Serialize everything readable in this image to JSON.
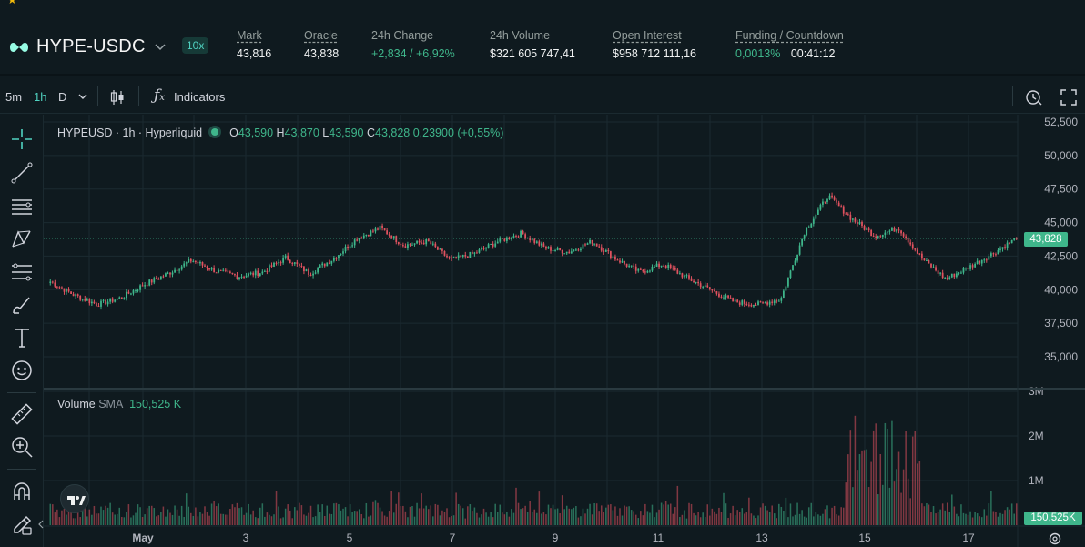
{
  "header": {
    "pair": "HYPE-USDC",
    "leverage": "10x",
    "stats": {
      "mark_label": "Mark",
      "mark_value": "43,816",
      "oracle_label": "Oracle",
      "oracle_value": "43,838",
      "change_label": "24h Change",
      "change_value": "+2,834 / +6,92%",
      "volume_label": "24h Volume",
      "volume_value": "$321 605 747,41",
      "oi_label": "Open Interest",
      "oi_value": "$958 712 111,16",
      "funding_label": "Funding / Countdown",
      "funding_rate": "0,0013%",
      "countdown": "00:41:12"
    }
  },
  "toolbar": {
    "intervals": [
      "5m",
      "1h",
      "D"
    ],
    "active_interval": "1h",
    "indicators_label": "Indicators"
  },
  "left_tools": [
    "crosshair-icon",
    "trend-line-icon",
    "horizontal-lines-icon",
    "pattern-icon",
    "fib-icon",
    "brush-icon",
    "text-icon",
    "emoji-icon",
    "ruler-icon",
    "zoom-in-icon",
    "magnet-icon",
    "lock-draw-icon"
  ],
  "legend": {
    "symbol": "HYPEUSD · 1h · Hyperliquid",
    "o_label": "O",
    "o": "43,590",
    "h_label": "H",
    "h": "43,870",
    "l_label": "L",
    "l": "43,590",
    "c_label": "C",
    "c": "43,828",
    "change": "0,23900 (+0,55%)"
  },
  "volume_legend": {
    "label": "Volume",
    "sma_label": "SMA",
    "value": "150,525 K"
  },
  "price_tag": "43,828",
  "volume_tag": "150,525K",
  "colors": {
    "up": "#3fb68b",
    "down": "#e0525f",
    "accent": "#50d2c1",
    "bg": "#0f1a1f",
    "grid": "#1b2a30"
  },
  "chart_data": {
    "type": "candlestick",
    "interval": "1h",
    "y_axis": {
      "min": 35000,
      "max": 52500,
      "ticks": [
        "52,500",
        "50,000",
        "47,500",
        "45,000",
        "42,500",
        "40,000",
        "37,500",
        "35,000"
      ]
    },
    "volume_axis": {
      "ticks": [
        "3M",
        "2M",
        "1M"
      ]
    },
    "x_ticks": [
      "May",
      "3",
      "5",
      "7",
      "9",
      "11",
      "13",
      "15",
      "17"
    ],
    "close_path_approx": [
      {
        "x": "Apr 30",
        "y": 40600
      },
      {
        "x": "Apr 30",
        "y": 39600
      },
      {
        "x": "May 1",
        "y": 38900
      },
      {
        "x": "May 1",
        "y": 39400
      },
      {
        "x": "May 1",
        "y": 40400
      },
      {
        "x": "May 2",
        "y": 41200
      },
      {
        "x": "May 2",
        "y": 42200
      },
      {
        "x": "May 3",
        "y": 41400
      },
      {
        "x": "May 3",
        "y": 41000
      },
      {
        "x": "May 4",
        "y": 41300
      },
      {
        "x": "May 4",
        "y": 42400
      },
      {
        "x": "May 5",
        "y": 41200
      },
      {
        "x": "May 5",
        "y": 42300
      },
      {
        "x": "May 6",
        "y": 43800
      },
      {
        "x": "May 6",
        "y": 44600
      },
      {
        "x": "May 7",
        "y": 43300
      },
      {
        "x": "May 7",
        "y": 43600
      },
      {
        "x": "May 8",
        "y": 42200
      },
      {
        "x": "May 8",
        "y": 42700
      },
      {
        "x": "May 9",
        "y": 43600
      },
      {
        "x": "May 9",
        "y": 44200
      },
      {
        "x": "May 10",
        "y": 43100
      },
      {
        "x": "May 10",
        "y": 42800
      },
      {
        "x": "May 11",
        "y": 43600
      },
      {
        "x": "May 11",
        "y": 42300
      },
      {
        "x": "May 12",
        "y": 41300
      },
      {
        "x": "May 12",
        "y": 41900
      },
      {
        "x": "May 13",
        "y": 40900
      },
      {
        "x": "May 13",
        "y": 40000
      },
      {
        "x": "May 14",
        "y": 39100
      },
      {
        "x": "May 14",
        "y": 38900
      },
      {
        "x": "May 14",
        "y": 39300
      },
      {
        "x": "May 14",
        "y": 44300
      },
      {
        "x": "May 15",
        "y": 47000
      },
      {
        "x": "May 15",
        "y": 45300
      },
      {
        "x": "May 15",
        "y": 44000
      },
      {
        "x": "May 16",
        "y": 44600
      },
      {
        "x": "May 16",
        "y": 42300
      },
      {
        "x": "May 16",
        "y": 40800
      },
      {
        "x": "May 17",
        "y": 41700
      },
      {
        "x": "May 17",
        "y": 42700
      },
      {
        "x": "May 17",
        "y": 43828
      }
    ],
    "last_close": 43828
  }
}
